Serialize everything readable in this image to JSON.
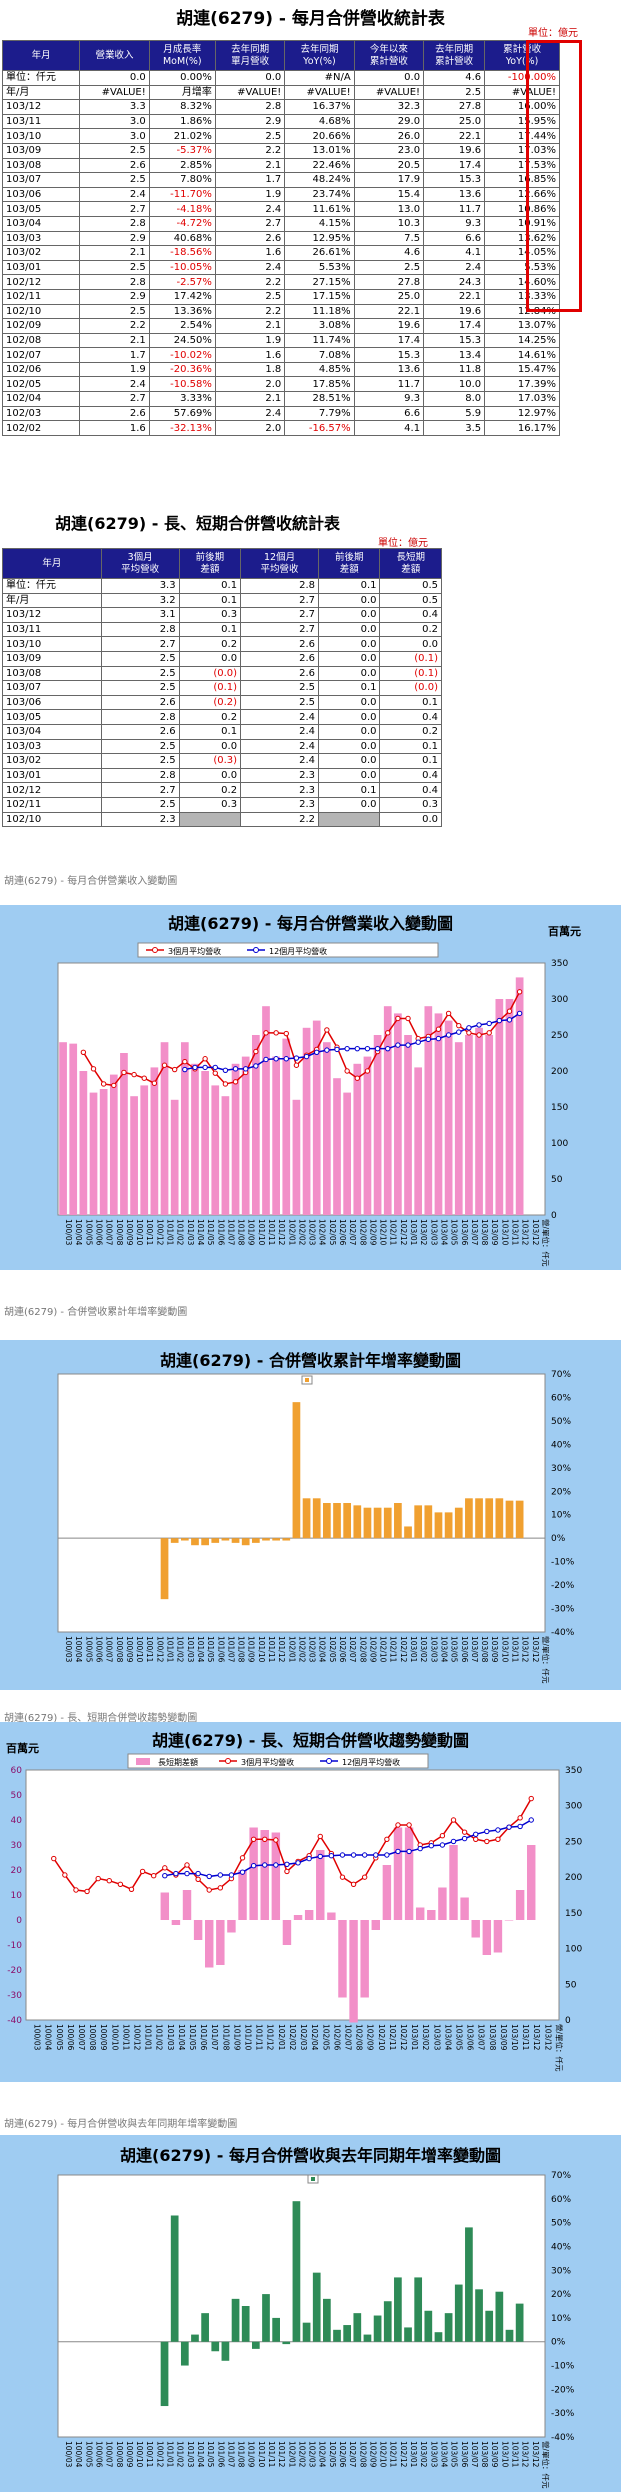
{
  "table1": {
    "title": "胡連(6279)  - 每月合併營收統計表",
    "unit": "單位：億元",
    "headers": [
      "年月",
      "營業收入",
      "月成長率\nMoM(%)",
      "去年同期\n單月營收",
      "去年同期\nYoY(%)",
      "今年以來\n累計營收",
      "去年同期\n累計營收",
      "累計營收\nYoY(%)"
    ],
    "sub_rows": [
      [
        "單位：仟元",
        "0.0",
        "0.00%",
        "0.0",
        "#N/A",
        "0.0",
        "4.6",
        "-100.00%"
      ],
      [
        "年/月",
        "#VALUE!",
        "月增率",
        "#VALUE!",
        "#VALUE!",
        "#VALUE!",
        "2.5",
        "#VALUE!"
      ]
    ],
    "rows": [
      [
        "103/12",
        "3.3",
        "8.32%",
        "2.8",
        "16.37%",
        "32.3",
        "27.8",
        "16.00%"
      ],
      [
        "103/11",
        "3.0",
        "1.86%",
        "2.9",
        "4.68%",
        "29.0",
        "25.0",
        "15.95%"
      ],
      [
        "103/10",
        "3.0",
        "21.02%",
        "2.5",
        "20.66%",
        "26.0",
        "22.1",
        "17.44%"
      ],
      [
        "103/09",
        "2.5",
        "-5.37%",
        "2.2",
        "13.01%",
        "23.0",
        "19.6",
        "17.03%"
      ],
      [
        "103/08",
        "2.6",
        "2.85%",
        "2.1",
        "22.46%",
        "20.5",
        "17.4",
        "17.53%"
      ],
      [
        "103/07",
        "2.5",
        "7.80%",
        "1.7",
        "48.24%",
        "17.9",
        "15.3",
        "16.85%"
      ],
      [
        "103/06",
        "2.4",
        "-11.70%",
        "1.9",
        "23.74%",
        "15.4",
        "13.6",
        "12.66%"
      ],
      [
        "103/05",
        "2.7",
        "-4.18%",
        "2.4",
        "11.61%",
        "13.0",
        "11.7",
        "10.86%"
      ],
      [
        "103/04",
        "2.8",
        "-4.72%",
        "2.7",
        "4.15%",
        "10.3",
        "9.3",
        "10.91%"
      ],
      [
        "103/03",
        "2.9",
        "40.68%",
        "2.6",
        "12.95%",
        "7.5",
        "6.6",
        "13.62%"
      ],
      [
        "103/02",
        "2.1",
        "-18.56%",
        "1.6",
        "26.61%",
        "4.6",
        "4.1",
        "14.05%"
      ],
      [
        "103/01",
        "2.5",
        "-10.05%",
        "2.4",
        "5.53%",
        "2.5",
        "2.4",
        "5.53%"
      ],
      [
        "102/12",
        "2.8",
        "-2.57%",
        "2.2",
        "27.15%",
        "27.8",
        "24.3",
        "14.60%"
      ],
      [
        "102/11",
        "2.9",
        "17.42%",
        "2.5",
        "17.15%",
        "25.0",
        "22.1",
        "13.33%"
      ],
      [
        "102/10",
        "2.5",
        "13.36%",
        "2.2",
        "11.18%",
        "22.1",
        "19.6",
        "12.84%"
      ],
      [
        "102/09",
        "2.2",
        "2.54%",
        "2.1",
        "3.08%",
        "19.6",
        "17.4",
        "13.07%"
      ],
      [
        "102/08",
        "2.1",
        "24.50%",
        "1.9",
        "11.74%",
        "17.4",
        "15.3",
        "14.25%"
      ],
      [
        "102/07",
        "1.7",
        "-10.02%",
        "1.6",
        "7.08%",
        "15.3",
        "13.4",
        "14.61%"
      ],
      [
        "102/06",
        "1.9",
        "-20.36%",
        "1.8",
        "4.85%",
        "13.6",
        "11.8",
        "15.47%"
      ],
      [
        "102/05",
        "2.4",
        "-10.58%",
        "2.0",
        "17.85%",
        "11.7",
        "10.0",
        "17.39%"
      ],
      [
        "102/04",
        "2.7",
        "3.33%",
        "2.1",
        "28.51%",
        "9.3",
        "8.0",
        "17.03%"
      ],
      [
        "102/03",
        "2.6",
        "57.69%",
        "2.4",
        "7.79%",
        "6.6",
        "5.9",
        "12.97%"
      ],
      [
        "102/02",
        "1.6",
        "-32.13%",
        "2.0",
        "-16.57%",
        "4.1",
        "3.5",
        "16.17%"
      ]
    ]
  },
  "table2": {
    "title": "胡連(6279)  - 長、短期合併營收統計表",
    "unit": "單位：億元",
    "headers": [
      "年月",
      "3個月\n平均營收",
      "前後期\n差額",
      "12個月\n平均營收",
      "前後期\n差額",
      "長短期\n差額"
    ],
    "sub_rows": [
      [
        "單位：仟元",
        "3.3",
        "0.1",
        "2.8",
        "0.1",
        "0.5"
      ],
      [
        "年/月",
        "3.2",
        "0.1",
        "2.7",
        "0.0",
        "0.5"
      ]
    ],
    "rows": [
      [
        "103/12",
        "3.1",
        "0.3",
        "2.7",
        "0.0",
        "0.4"
      ],
      [
        "103/11",
        "2.8",
        "0.1",
        "2.7",
        "0.0",
        "0.2"
      ],
      [
        "103/10",
        "2.7",
        "0.2",
        "2.6",
        "0.0",
        "0.0"
      ],
      [
        "103/09",
        "2.5",
        "0.0",
        "2.6",
        "0.0",
        "(0.1)"
      ],
      [
        "103/08",
        "2.5",
        "(0.0)",
        "2.6",
        "0.0",
        "(0.1)"
      ],
      [
        "103/07",
        "2.5",
        "(0.1)",
        "2.5",
        "0.1",
        "(0.0)"
      ],
      [
        "103/06",
        "2.6",
        "(0.2)",
        "2.5",
        "0.0",
        "0.1"
      ],
      [
        "103/05",
        "2.8",
        "0.2",
        "2.4",
        "0.0",
        "0.4"
      ],
      [
        "103/04",
        "2.6",
        "0.1",
        "2.4",
        "0.0",
        "0.2"
      ],
      [
        "103/03",
        "2.5",
        "0.0",
        "2.4",
        "0.0",
        "0.1"
      ],
      [
        "103/02",
        "2.5",
        "(0.3)",
        "2.4",
        "0.0",
        "0.1"
      ],
      [
        "103/01",
        "2.8",
        "0.0",
        "2.3",
        "0.0",
        "0.4"
      ],
      [
        "102/12",
        "2.7",
        "0.2",
        "2.3",
        "0.1",
        "0.4"
      ],
      [
        "102/11",
        "2.5",
        "0.3",
        "2.3",
        "0.0",
        "0.3"
      ],
      [
        "102/10",
        "2.3",
        "",
        "2.2",
        "",
        "0.0"
      ]
    ]
  },
  "chart_data": [
    {
      "type": "bar",
      "caption": "胡連(6279)  - 每月合併營業收入變動圖",
      "title": "胡連(6279)  - 每月合併營業收入變動圖",
      "unit_label": "百萬元",
      "y_right_ticks": [
        "0",
        "50",
        "100",
        "150",
        "200",
        "250",
        "300",
        "350"
      ],
      "ylim": [
        0,
        350
      ],
      "categories": [
        "100/03",
        "100/04",
        "100/05",
        "100/06",
        "100/07",
        "100/08",
        "100/09",
        "100/10",
        "100/11",
        "100/12",
        "101/01",
        "101/02",
        "101/03",
        "101/04",
        "101/05",
        "101/06",
        "101/07",
        "101/08",
        "101/09",
        "101/10",
        "101/11",
        "101/12",
        "102/01",
        "102/02",
        "102/03",
        "102/04",
        "102/05",
        "102/06",
        "102/07",
        "102/08",
        "102/09",
        "102/10",
        "102/11",
        "102/12",
        "103/01",
        "103/02",
        "103/03",
        "103/04",
        "103/05",
        "103/06",
        "103/07",
        "103/08",
        "103/09",
        "103/10",
        "103/11",
        "103/12"
      ],
      "x_tick_labels": [
        "100/03",
        "100/04",
        "100/05",
        "100/06",
        "100/07",
        "100/08",
        "100/09",
        "100/10",
        "100/11",
        "100/12",
        "101/01",
        "101/02",
        "101/03",
        "101/04",
        "101/05",
        "101/06",
        "101/07",
        "101/08",
        "101/09",
        "101/10",
        "101/11",
        "101/12",
        "102/01",
        "102/02",
        "102/03",
        "102/04",
        "102/05",
        "102/06",
        "102/07",
        "102/08",
        "102/09",
        "102/10",
        "102/11",
        "102/12",
        "103/01",
        "103/02",
        "103/03",
        "103/04",
        "103/05",
        "103/06",
        "103/07",
        "103/08",
        "103/09",
        "103/10",
        "103/11",
        "103/12",
        "103/12",
        "營/單位：仟元"
      ],
      "series": [
        {
          "name": "",
          "kind": "bar",
          "color": "#f28fc8",
          "values": [
            240,
            238,
            200,
            170,
            175,
            195,
            225,
            165,
            180,
            205,
            240,
            160,
            240,
            210,
            200,
            180,
            165,
            210,
            220,
            250,
            290,
            220,
            245,
            160,
            260,
            270,
            240,
            190,
            170,
            210,
            220,
            250,
            290,
            280,
            250,
            205,
            290,
            280,
            270,
            240,
            250,
            260,
            250,
            300,
            300,
            330
          ]
        },
        {
          "name": "3個月平均營收",
          "kind": "line",
          "color": "#e00000",
          "values": [
            null,
            null,
            226,
            203,
            182,
            180,
            198,
            195,
            190,
            183,
            208,
            202,
            213,
            203,
            217,
            197,
            182,
            185,
            198,
            227,
            253,
            253,
            252,
            208,
            222,
            230,
            257,
            233,
            200,
            190,
            200,
            227,
            253,
            273,
            273,
            245,
            248,
            258,
            280,
            263,
            253,
            250,
            253,
            270,
            283,
            310
          ]
        },
        {
          "name": "12個月平均營收",
          "kind": "line",
          "color": "#0000d0",
          "values": [
            null,
            null,
            null,
            null,
            null,
            null,
            null,
            null,
            null,
            null,
            null,
            null,
            202,
            205,
            205,
            205,
            201,
            203,
            203,
            207,
            216,
            217,
            217,
            218,
            220,
            226,
            229,
            230,
            231,
            231,
            231,
            231,
            231,
            236,
            236,
            240,
            244,
            245,
            250,
            254,
            260,
            264,
            266,
            270,
            271,
            280
          ]
        }
      ]
    },
    {
      "type": "bar",
      "caption": "胡連(6279)  - 合併營收累計年增率變動圖",
      "title": "胡連(6279)  - 合併營收累計年增率變動圖",
      "y_right_ticks": [
        "70%",
        "60%",
        "50%",
        "40%",
        "30%",
        "20%",
        "10%",
        "0%",
        "-10%",
        "-20%",
        "-30%",
        "-40%"
      ],
      "ylim": [
        -40,
        70
      ],
      "x_tick_labels": [
        "100/03",
        "100/04",
        "100/05",
        "100/06",
        "100/07",
        "100/08",
        "100/09",
        "100/10",
        "100/11",
        "100/12",
        "101/01",
        "101/02",
        "101/03",
        "101/04",
        "101/05",
        "101/06",
        "101/07",
        "101/08",
        "101/09",
        "101/10",
        "101/11",
        "101/12",
        "102/01",
        "102/02",
        "102/03",
        "102/04",
        "102/05",
        "102/06",
        "102/07",
        "102/08",
        "102/09",
        "102/10",
        "102/11",
        "102/12",
        "103/01",
        "103/02",
        "103/03",
        "103/04",
        "103/05",
        "103/06",
        "103/07",
        "103/08",
        "103/09",
        "103/10",
        "103/11",
        "103/12",
        "103/12",
        "營/單位：仟元"
      ],
      "series": [
        {
          "name": "",
          "kind": "bar",
          "color": "#f0a030",
          "values": [
            null,
            null,
            null,
            null,
            null,
            null,
            null,
            null,
            null,
            null,
            -26,
            -2,
            -1,
            -3,
            -3,
            -2,
            -1,
            -2,
            -3,
            -2,
            -1,
            -1,
            -1,
            58,
            17,
            17,
            15,
            15,
            15,
            14,
            13,
            13,
            13,
            15,
            5,
            14,
            14,
            11,
            11,
            13,
            17,
            17,
            17,
            17,
            16,
            16
          ]
        }
      ]
    },
    {
      "type": "bar",
      "caption": "胡連(6279)  - 長、短期合併營收趨勢變動圖",
      "title": "胡連(6279)  - 長、短期合併營收趨勢變動圖",
      "unit_label": "百萬元",
      "y_left_ticks": [
        "60",
        "50",
        "40",
        "30",
        "20",
        "10",
        "0",
        "-10",
        "-20",
        "-30",
        "-40"
      ],
      "y_right_ticks": [
        "0",
        "50",
        "100",
        "150",
        "200",
        "250",
        "300",
        "350"
      ],
      "ylim_left": [
        -40,
        60
      ],
      "ylim_right": [
        0,
        350
      ],
      "x_tick_labels": [
        "100/03",
        "100/04",
        "100/05",
        "100/06",
        "100/07",
        "100/08",
        "100/09",
        "100/10",
        "100/11",
        "100/12",
        "101/01",
        "101/02",
        "101/03",
        "101/04",
        "101/05",
        "101/06",
        "101/07",
        "101/08",
        "101/09",
        "101/10",
        "101/11",
        "101/12",
        "102/01",
        "102/02",
        "102/03",
        "102/04",
        "102/05",
        "102/06",
        "102/07",
        "102/08",
        "102/09",
        "102/10",
        "102/11",
        "102/12",
        "103/01",
        "103/02",
        "103/03",
        "103/04",
        "103/05",
        "103/06",
        "103/07",
        "103/08",
        "103/09",
        "103/10",
        "103/11",
        "103/12",
        "103/12",
        "營/單位：仟元"
      ],
      "series": [
        {
          "name": "長短期差額",
          "kind": "bar",
          "axis": "left",
          "color": "#f28fc8",
          "values": [
            null,
            null,
            null,
            null,
            null,
            null,
            null,
            null,
            null,
            null,
            null,
            null,
            11,
            -2,
            12,
            -8,
            -19,
            -18,
            -5,
            20,
            37,
            36,
            35,
            -10,
            2,
            4,
            28,
            3,
            -31,
            -41,
            -31,
            -4,
            22,
            37,
            37,
            5,
            4,
            13,
            30,
            9,
            -7,
            -14,
            -13,
            0,
            12,
            30
          ]
        },
        {
          "name": "3個月平均營收",
          "kind": "line",
          "axis": "right",
          "color": "#e00000",
          "values": [
            null,
            null,
            226,
            203,
            182,
            180,
            198,
            195,
            190,
            183,
            208,
            202,
            213,
            203,
            217,
            197,
            182,
            185,
            198,
            227,
            253,
            253,
            252,
            208,
            222,
            230,
            257,
            233,
            200,
            190,
            200,
            227,
            253,
            273,
            273,
            245,
            248,
            258,
            280,
            263,
            253,
            250,
            253,
            270,
            283,
            310
          ]
        },
        {
          "name": "12個月平均營收",
          "kind": "line",
          "axis": "right",
          "color": "#0000d0",
          "values": [
            null,
            null,
            null,
            null,
            null,
            null,
            null,
            null,
            null,
            null,
            null,
            null,
            202,
            205,
            205,
            205,
            201,
            203,
            203,
            207,
            216,
            217,
            217,
            218,
            220,
            226,
            229,
            230,
            231,
            231,
            231,
            231,
            231,
            236,
            236,
            240,
            244,
            245,
            250,
            254,
            260,
            264,
            266,
            270,
            271,
            280
          ]
        }
      ]
    },
    {
      "type": "bar",
      "caption": "胡連(6279)  - 每月合併營收與去年同期年增率變動圖",
      "title": "胡連(6279)  - 每月合併營收與去年同期年增率變動圖",
      "y_right_ticks": [
        "70%",
        "60%",
        "50%",
        "40%",
        "30%",
        "20%",
        "10%",
        "0%",
        "-10%",
        "-20%",
        "-30%",
        "-40%"
      ],
      "ylim": [
        -40,
        70
      ],
      "x_tick_labels": [
        "100/03",
        "100/04",
        "100/05",
        "100/06",
        "100/07",
        "100/08",
        "100/09",
        "100/10",
        "100/11",
        "100/12",
        "101/01",
        "101/02",
        "101/03",
        "101/04",
        "101/05",
        "101/06",
        "101/07",
        "101/08",
        "101/09",
        "101/10",
        "101/11",
        "101/12",
        "102/01",
        "102/02",
        "102/03",
        "102/04",
        "102/05",
        "102/06",
        "102/07",
        "102/08",
        "102/09",
        "102/10",
        "102/11",
        "102/12",
        "103/01",
        "103/02",
        "103/03",
        "103/04",
        "103/05",
        "103/06",
        "103/07",
        "103/08",
        "103/09",
        "103/10",
        "103/11",
        "103/12",
        "103/12",
        "營/單位：仟元"
      ],
      "series": [
        {
          "name": "",
          "kind": "bar",
          "color": "#2e8b57",
          "values": [
            null,
            null,
            null,
            null,
            null,
            null,
            null,
            null,
            null,
            null,
            -27,
            53,
            -10,
            3,
            12,
            -4,
            -8,
            18,
            15,
            -3,
            20,
            10,
            -1,
            59,
            8,
            29,
            18,
            5,
            7,
            12,
            3,
            11,
            17,
            27,
            6,
            27,
            13,
            4,
            12,
            24,
            48,
            22,
            13,
            21,
            5,
            16
          ]
        }
      ]
    }
  ]
}
